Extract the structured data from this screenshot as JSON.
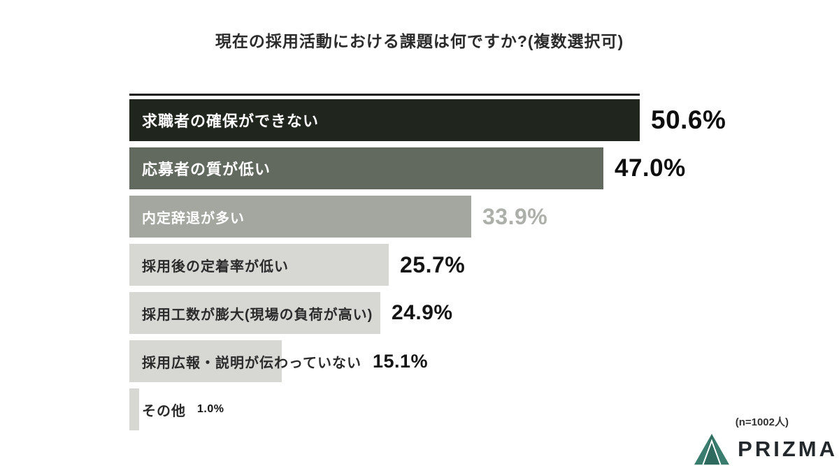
{
  "title": "現在の採用活動における課題は何ですか?(複数選択可)",
  "note": "(n=1002人)",
  "logo": {
    "text": "PRIZMA"
  },
  "chart_data": {
    "type": "bar",
    "orientation": "horizontal",
    "title": "現在の採用活動における課題は何ですか?(複数選択可)",
    "unit": "%",
    "xlim": [
      0,
      50.6
    ],
    "grid": false,
    "legend": "none",
    "sample_note": "(n=1002人)",
    "categories": [
      "求職者の確保ができない",
      "応募者の質が低い",
      "内定辞退が多い",
      "採用後の定着率が低い",
      "採用工数が膨大(現場の負荷が高い)",
      "採用広報・説明が伝わっていない",
      "その他"
    ],
    "values": [
      50.6,
      47.0,
      33.9,
      25.7,
      24.9,
      15.1,
      1.0
    ],
    "items": [
      {
        "label": "求職者の確保ができない",
        "value_label": "50.6%",
        "value": 50.6,
        "bar_color": "#20261e",
        "label_color": "#ffffff",
        "value_color": "#0e0e0e"
      },
      {
        "label": "応募者の質が低い",
        "value_label": "47.0%",
        "value": 47.0,
        "bar_color": "#626a60",
        "label_color": "#ffffff",
        "value_color": "#0e0e0e"
      },
      {
        "label": "内定辞退が多い",
        "value_label": "33.9%",
        "value": 33.9,
        "bar_color": "#a3a7a0",
        "label_color": "#ffffff",
        "value_color": "#adb0aa"
      },
      {
        "label": "採用後の定着率が低い",
        "value_label": "25.7%",
        "value": 25.7,
        "bar_color": "#d7d8d4",
        "label_color": "#2b2b2b",
        "value_color": "#141414"
      },
      {
        "label": "採用工数が膨大(現場の負荷が高い)",
        "value_label": "24.9%",
        "value": 24.9,
        "bar_color": "#d7d8d4",
        "label_color": "#2b2b2b",
        "value_color": "#141414"
      },
      {
        "label": "採用広報・説明が伝わっていない",
        "value_label": "15.1%",
        "value": 15.1,
        "bar_color": "#d7d8d4",
        "label_color": "#2b2b2b",
        "value_color": "#141414"
      },
      {
        "label": "その他",
        "value_label": "1.0%",
        "value": 1.0,
        "bar_color": "#d7d8d4",
        "label_color": "#2b2b2b",
        "value_color": "#141414"
      }
    ],
    "colors": {
      "accent_dark": "#20261e",
      "accent_mid": "#626a60",
      "accent_gray": "#a3a7a0",
      "accent_light": "#d7d8d4",
      "logo_teal": "#3a7d6e"
    }
  }
}
